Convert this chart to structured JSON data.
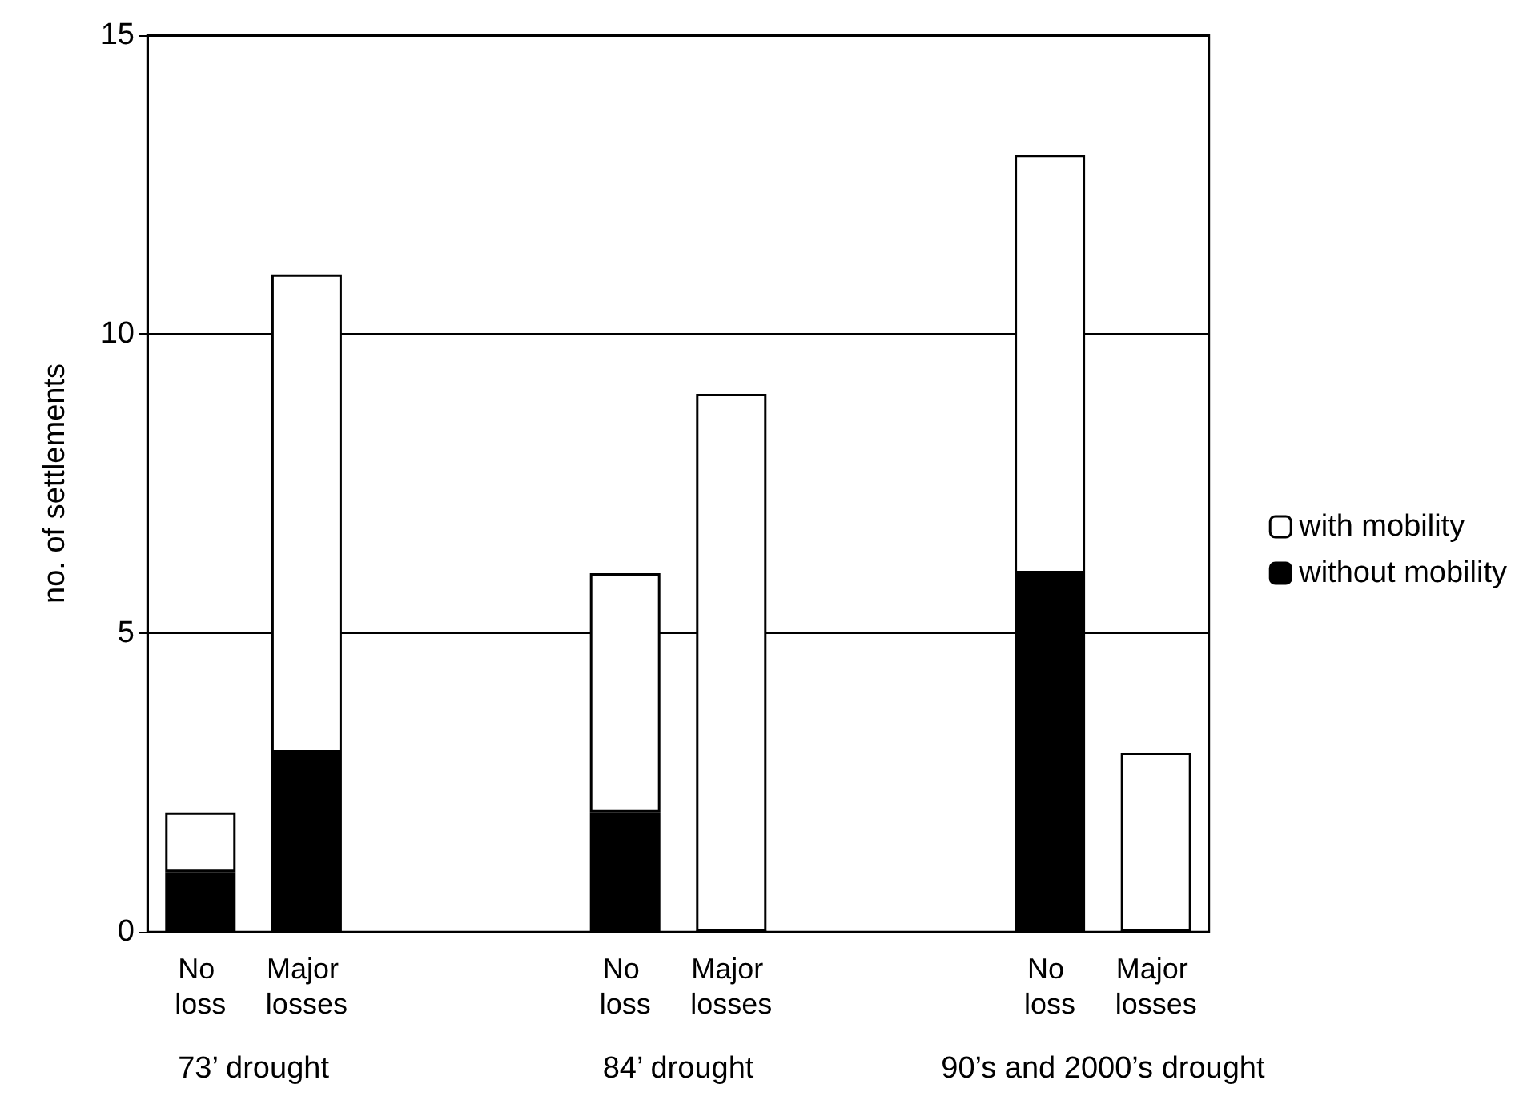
{
  "chart_data": {
    "type": "bar",
    "stacked": true,
    "ylabel": "no. of settlements",
    "categories": [
      "No loss",
      "Major losses",
      null,
      null,
      "No loss",
      "Major losses",
      null,
      null,
      "No loss",
      "Major losses"
    ],
    "series": [
      {
        "name": "without mobility",
        "color": "#000000",
        "values": [
          1,
          3,
          null,
          null,
          2,
          0,
          null,
          null,
          6,
          0
        ]
      },
      {
        "name": "with mobility",
        "color": "#ffffff",
        "values": [
          1,
          8,
          null,
          null,
          4,
          9,
          null,
          null,
          7,
          3
        ]
      }
    ],
    "annotations": [
      "73’ drought",
      "84’ drought",
      "90’s and 2000’s drought"
    ],
    "ylim": [
      0,
      15
    ],
    "yticks": [
      0,
      5,
      10,
      15
    ],
    "grid": "y",
    "legend": "right"
  }
}
